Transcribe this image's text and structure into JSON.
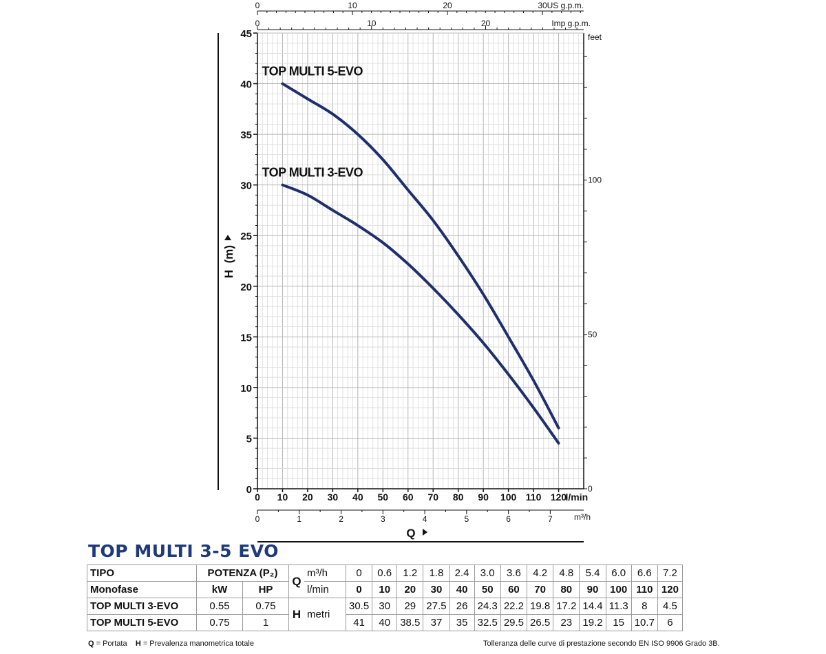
{
  "chart_data": {
    "type": "line",
    "xlabel": "Q",
    "ylabel": "H  (m)",
    "x_unit": "l/min",
    "x_ticks": [
      0,
      10,
      20,
      30,
      40,
      50,
      60,
      70,
      80,
      90,
      100,
      110,
      120
    ],
    "xlim": [
      0,
      130
    ],
    "ylim": [
      0,
      45
    ],
    "y_ticks": [
      0,
      5,
      10,
      15,
      20,
      25,
      30,
      35,
      40,
      45
    ],
    "secondary_axes": {
      "us_gpm": {
        "label": "US g.p.m.",
        "ticks": [
          "0",
          "10",
          "20",
          "30"
        ]
      },
      "imp_gpm": {
        "label": "Imp g.p.m.",
        "ticks": [
          "0",
          "10",
          "20"
        ]
      },
      "feet": {
        "label": "feet",
        "ticks": [
          "0",
          "50",
          "100"
        ]
      },
      "m3h": {
        "label": "m³/h",
        "ticks": [
          "0",
          "1",
          "2",
          "3",
          "4",
          "5",
          "6",
          "7"
        ]
      }
    },
    "grid": true,
    "series": [
      {
        "name": "TOP MULTI 5-EVO",
        "color": "#1f2f6e",
        "x": [
          10,
          20,
          30,
          40,
          50,
          60,
          70,
          80,
          90,
          100,
          110,
          120
        ],
        "y": [
          40,
          38.5,
          37,
          35,
          32.5,
          29.5,
          26.5,
          23,
          19.2,
          15,
          10.7,
          6
        ]
      },
      {
        "name": "TOP MULTI 3-EVO",
        "color": "#1f2f6e",
        "x": [
          10,
          20,
          30,
          40,
          50,
          60,
          70,
          80,
          90,
          100,
          110,
          120
        ],
        "y": [
          30,
          29,
          27.5,
          26,
          24.3,
          22.2,
          19.8,
          17.2,
          14.4,
          11.3,
          8,
          4.5
        ]
      }
    ]
  },
  "title": "TOP MULTI 3-5 EVO",
  "table": {
    "tipo_label": "TIPO",
    "potenza_label": "POTENZA (P₂)",
    "monofase_label": "Monofase",
    "kw_label": "kW",
    "hp_label": "HP",
    "q_symbol": "Q",
    "q_m3h_label": "m³/h",
    "q_lmin_label": "l/min",
    "h_symbol": "H",
    "h_unit_label": "metri",
    "m3h_values": [
      "0",
      "0.6",
      "1.2",
      "1.8",
      "2.4",
      "3.0",
      "3.6",
      "4.2",
      "4.8",
      "5.4",
      "6.0",
      "6.6",
      "7.2"
    ],
    "lmin_values": [
      "0",
      "10",
      "20",
      "30",
      "40",
      "50",
      "60",
      "70",
      "80",
      "90",
      "100",
      "110",
      "120"
    ],
    "rows": [
      {
        "model": "TOP MULTI 3-EVO",
        "kw": "0.55",
        "hp": "0.75",
        "h": [
          "30.5",
          "30",
          "29",
          "27.5",
          "26",
          "24.3",
          "22.2",
          "19.8",
          "17.2",
          "14.4",
          "11.3",
          "8",
          "4.5"
        ]
      },
      {
        "model": "TOP MULTI 5-EVO",
        "kw": "0.75",
        "hp": "1",
        "h": [
          "41",
          "40",
          "38.5",
          "37",
          "35",
          "32.5",
          "29.5",
          "26.5",
          "23",
          "19.2",
          "15",
          "10.7",
          "6"
        ]
      }
    ]
  },
  "footer": {
    "q_key": "Q",
    "q_desc": " = Portata",
    "h_key": "H",
    "h_desc": " = Prevalenza manometrica totale",
    "tolerance": "Tolleranza delle curve di prestazione secondo EN ISO 9906 Grado 3B."
  }
}
